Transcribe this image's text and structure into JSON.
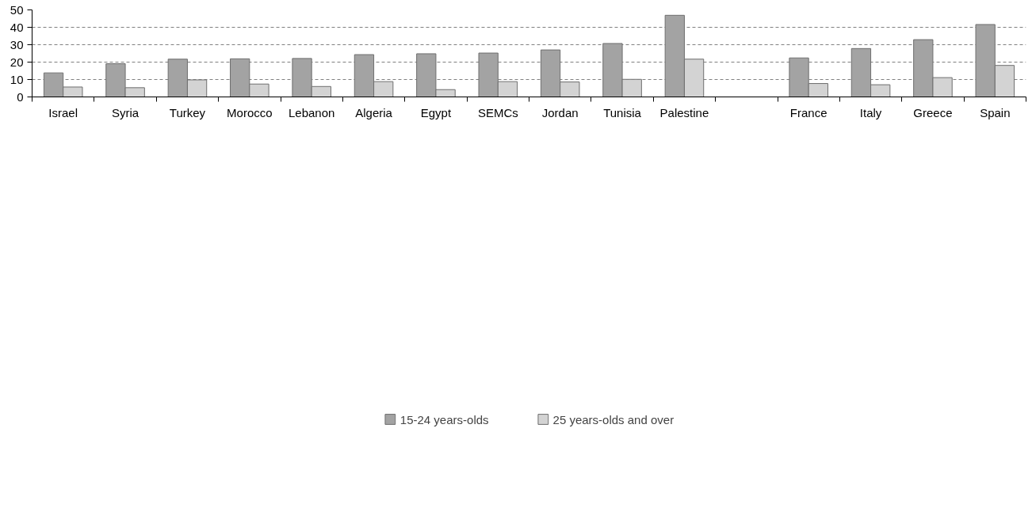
{
  "chart_data": {
    "type": "bar",
    "categories": [
      "Israel",
      "Syria",
      "Turkey",
      "Morocco",
      "Lebanon",
      "Algeria",
      "Egypt",
      "SEMCs",
      "Jordan",
      "Tunisia",
      "Palestine",
      null,
      "France",
      "Italy",
      "Greece",
      "Spain"
    ],
    "series": [
      {
        "name": "15-24 years-olds",
        "color": "#a3a3a3",
        "values": [
          13.8,
          19.1,
          21.7,
          21.9,
          22.1,
          24.3,
          24.8,
          25.2,
          27.0,
          30.7,
          46.9,
          null,
          22.4,
          27.8,
          32.9,
          41.6
        ]
      },
      {
        "name": "25 years-olds and over",
        "color": "#d3d3d3",
        "values": [
          5.7,
          5.3,
          9.8,
          7.4,
          6.0,
          8.8,
          4.2,
          8.8,
          8.6,
          10.1,
          21.7,
          null,
          7.7,
          7.0,
          11.1,
          18.1
        ]
      }
    ],
    "ylim": [
      0,
      50
    ],
    "yticks": [
      0,
      10,
      20,
      30,
      40,
      50
    ],
    "grid": "y",
    "legend": "bottom"
  }
}
